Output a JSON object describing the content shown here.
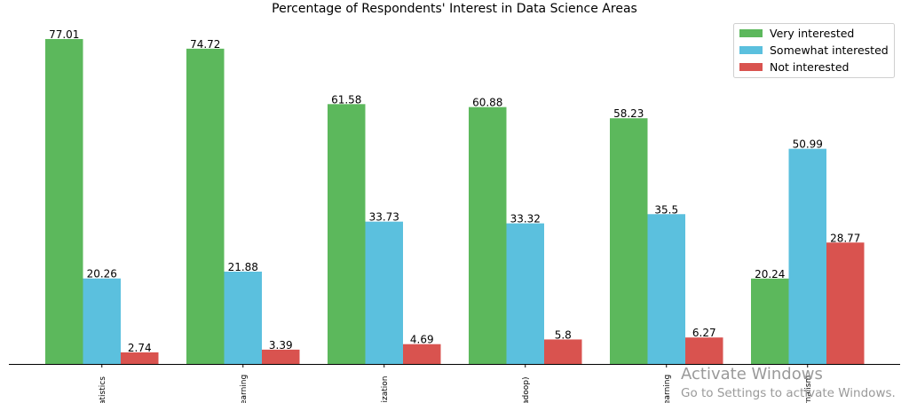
{
  "chart_data": {
    "type": "bar",
    "title": "Percentage of Respondents' Interest in Data Science Areas",
    "xlabel": "",
    "ylabel": "",
    "ylim": [
      0,
      81
    ],
    "categories": [
      "Data Analysis / Statistics",
      "Machine Learning",
      "Data Visualization",
      "Big Data (Spark / Hadoop)",
      "Deep Learning",
      "Data Journalism"
    ],
    "tick_labels_visible": [
      "atistics",
      "earning",
      "lization",
      "adoop)",
      "earning",
      "rnalism"
    ],
    "series": [
      {
        "name": "Very interested",
        "color": "#5cb85c",
        "values": [
          77.01,
          74.72,
          61.58,
          60.88,
          58.23,
          20.24
        ],
        "labels": [
          "77.01",
          "74.72",
          "61.58",
          "60.88",
          "58.23",
          "20.24"
        ]
      },
      {
        "name": "Somewhat interested",
        "color": "#5bc0de",
        "values": [
          20.26,
          21.88,
          33.73,
          33.32,
          35.5,
          50.99
        ],
        "labels": [
          "20.26",
          "21.88",
          "33.73",
          "33.32",
          "35.5",
          "50.99"
        ]
      },
      {
        "name": "Not interested",
        "color": "#d9534f",
        "values": [
          2.74,
          3.39,
          4.69,
          5.8,
          6.27,
          28.77
        ],
        "labels": [
          "2.74",
          "3.39",
          "4.69",
          "5.8",
          "6.27",
          "28.77"
        ]
      }
    ],
    "legend": {
      "placement": "top-right"
    },
    "grid": false,
    "axes": {
      "left_spine": false,
      "top_spine": false,
      "right_spine": false,
      "bottom_spine": true
    }
  },
  "watermark": {
    "title": "Activate Windows",
    "subtitle": "Go to Settings to activate Windows."
  }
}
